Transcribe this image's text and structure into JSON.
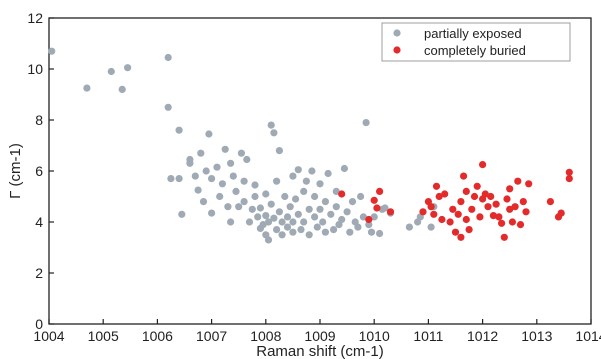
{
  "chart_data": {
    "type": "scatter",
    "xlabel": "Raman shift (cm-1)",
    "ylabel": "Γ (cm-1)",
    "xlim": [
      1004,
      1014
    ],
    "ylim": [
      0,
      12
    ],
    "xticks": [
      "1004",
      "1005",
      "1006",
      "1007",
      "1008",
      "1009",
      "1010",
      "1011",
      "1012",
      "1013",
      "1014"
    ],
    "yticks": [
      "0",
      "2",
      "4",
      "6",
      "8",
      "10",
      "12"
    ],
    "legend_position": "top-right",
    "grid": false,
    "series": [
      {
        "name": "partially exposed",
        "color": "#a0aab4",
        "points": [
          [
            1004.05,
            10.7
          ],
          [
            1004.7,
            9.25
          ],
          [
            1005.15,
            9.9
          ],
          [
            1005.35,
            9.2
          ],
          [
            1005.45,
            10.05
          ],
          [
            1006.2,
            10.45
          ],
          [
            1006.2,
            8.5
          ],
          [
            1006.25,
            5.7
          ],
          [
            1006.4,
            7.6
          ],
          [
            1006.4,
            5.7
          ],
          [
            1006.45,
            4.3
          ],
          [
            1006.6,
            6.3
          ],
          [
            1006.6,
            6.45
          ],
          [
            1006.7,
            5.8
          ],
          [
            1006.75,
            5.25
          ],
          [
            1006.8,
            6.7
          ],
          [
            1006.85,
            4.8
          ],
          [
            1006.9,
            6.0
          ],
          [
            1006.95,
            7.45
          ],
          [
            1007.0,
            5.7
          ],
          [
            1007.0,
            4.35
          ],
          [
            1007.1,
            6.15
          ],
          [
            1007.15,
            5.0
          ],
          [
            1007.2,
            5.5
          ],
          [
            1007.25,
            6.85
          ],
          [
            1007.3,
            4.6
          ],
          [
            1007.35,
            6.3
          ],
          [
            1007.35,
            4.0
          ],
          [
            1007.4,
            5.8
          ],
          [
            1007.45,
            5.2
          ],
          [
            1007.5,
            4.6
          ],
          [
            1007.55,
            6.7
          ],
          [
            1007.6,
            4.8
          ],
          [
            1007.6,
            5.6
          ],
          [
            1007.65,
            6.45
          ],
          [
            1007.7,
            4.0
          ],
          [
            1007.75,
            4.5
          ],
          [
            1007.8,
            5.0
          ],
          [
            1007.8,
            5.45
          ],
          [
            1007.85,
            4.2
          ],
          [
            1007.9,
            3.75
          ],
          [
            1007.9,
            4.55
          ],
          [
            1007.95,
            3.9
          ],
          [
            1008.0,
            5.1
          ],
          [
            1008.0,
            3.5
          ],
          [
            1008.0,
            4.25
          ],
          [
            1008.05,
            4.0
          ],
          [
            1008.05,
            3.3
          ],
          [
            1008.1,
            7.8
          ],
          [
            1008.1,
            4.7
          ],
          [
            1008.15,
            7.5
          ],
          [
            1008.15,
            4.15
          ],
          [
            1008.2,
            5.6
          ],
          [
            1008.2,
            3.7
          ],
          [
            1008.25,
            6.8
          ],
          [
            1008.25,
            4.4
          ],
          [
            1008.3,
            4.0
          ],
          [
            1008.3,
            3.5
          ],
          [
            1008.35,
            5.0
          ],
          [
            1008.4,
            4.2
          ],
          [
            1008.4,
            3.8
          ],
          [
            1008.45,
            4.6
          ],
          [
            1008.5,
            5.8
          ],
          [
            1008.5,
            4.0
          ],
          [
            1008.5,
            3.6
          ],
          [
            1008.55,
            4.9
          ],
          [
            1008.6,
            6.05
          ],
          [
            1008.6,
            4.3
          ],
          [
            1008.65,
            3.7
          ],
          [
            1008.7,
            5.2
          ],
          [
            1008.7,
            4.0
          ],
          [
            1008.75,
            5.6
          ],
          [
            1008.8,
            4.5
          ],
          [
            1008.8,
            3.5
          ],
          [
            1008.85,
            6.0
          ],
          [
            1008.9,
            4.2
          ],
          [
            1008.9,
            5.0
          ],
          [
            1008.95,
            3.8
          ],
          [
            1009.0,
            4.5
          ],
          [
            1009.0,
            5.5
          ],
          [
            1009.05,
            4.0
          ],
          [
            1009.1,
            3.6
          ],
          [
            1009.1,
            4.8
          ],
          [
            1009.15,
            5.9
          ],
          [
            1009.2,
            4.3
          ],
          [
            1009.25,
            3.7
          ],
          [
            1009.3,
            4.6
          ],
          [
            1009.3,
            5.2
          ],
          [
            1009.35,
            3.9
          ],
          [
            1009.4,
            4.1
          ],
          [
            1009.45,
            6.1
          ],
          [
            1009.5,
            4.4
          ],
          [
            1009.55,
            3.6
          ],
          [
            1009.6,
            4.8
          ],
          [
            1009.65,
            4.0
          ],
          [
            1009.7,
            3.8
          ],
          [
            1009.75,
            5.0
          ],
          [
            1009.8,
            4.2
          ],
          [
            1009.85,
            7.9
          ],
          [
            1009.9,
            3.9
          ],
          [
            1009.95,
            3.6
          ],
          [
            1010.0,
            4.2
          ],
          [
            1010.1,
            3.55
          ],
          [
            1010.15,
            4.5
          ],
          [
            1010.2,
            4.55
          ],
          [
            1010.3,
            4.35
          ],
          [
            1010.65,
            3.8
          ],
          [
            1010.8,
            4.0
          ],
          [
            1010.85,
            4.2
          ],
          [
            1011.05,
            3.8
          ],
          [
            1011.1,
            4.6
          ]
        ]
      },
      {
        "name": "completely buried",
        "color": "#e32b2b",
        "points": [
          [
            1009.4,
            5.1
          ],
          [
            1009.9,
            4.1
          ],
          [
            1010.0,
            4.85
          ],
          [
            1010.05,
            4.55
          ],
          [
            1010.1,
            5.2
          ],
          [
            1010.3,
            4.4
          ],
          [
            1010.9,
            4.4
          ],
          [
            1011.0,
            4.8
          ],
          [
            1011.05,
            4.6
          ],
          [
            1011.1,
            4.3
          ],
          [
            1011.15,
            5.4
          ],
          [
            1011.2,
            5.0
          ],
          [
            1011.25,
            4.1
          ],
          [
            1011.3,
            5.1
          ],
          [
            1011.4,
            4.0
          ],
          [
            1011.45,
            4.5
          ],
          [
            1011.5,
            3.6
          ],
          [
            1011.55,
            4.3
          ],
          [
            1011.6,
            3.4
          ],
          [
            1011.6,
            4.8
          ],
          [
            1011.65,
            5.8
          ],
          [
            1011.7,
            5.2
          ],
          [
            1011.7,
            4.1
          ],
          [
            1011.75,
            3.7
          ],
          [
            1011.8,
            4.5
          ],
          [
            1011.85,
            5.0
          ],
          [
            1011.9,
            5.4
          ],
          [
            1011.95,
            4.2
          ],
          [
            1012.0,
            6.25
          ],
          [
            1012.0,
            4.9
          ],
          [
            1012.05,
            5.1
          ],
          [
            1012.1,
            4.6
          ],
          [
            1012.15,
            5.0
          ],
          [
            1012.2,
            4.25
          ],
          [
            1012.25,
            4.7
          ],
          [
            1012.3,
            4.2
          ],
          [
            1012.35,
            3.95
          ],
          [
            1012.4,
            3.4
          ],
          [
            1012.45,
            4.9
          ],
          [
            1012.5,
            4.5
          ],
          [
            1012.5,
            5.3
          ],
          [
            1012.55,
            4.0
          ],
          [
            1012.6,
            4.6
          ],
          [
            1012.65,
            5.6
          ],
          [
            1012.7,
            3.9
          ],
          [
            1012.75,
            4.8
          ],
          [
            1012.8,
            4.4
          ],
          [
            1012.85,
            5.5
          ],
          [
            1013.25,
            4.8
          ],
          [
            1013.4,
            4.2
          ],
          [
            1013.45,
            4.35
          ],
          [
            1013.6,
            5.95
          ],
          [
            1013.6,
            5.7
          ]
        ]
      }
    ]
  }
}
